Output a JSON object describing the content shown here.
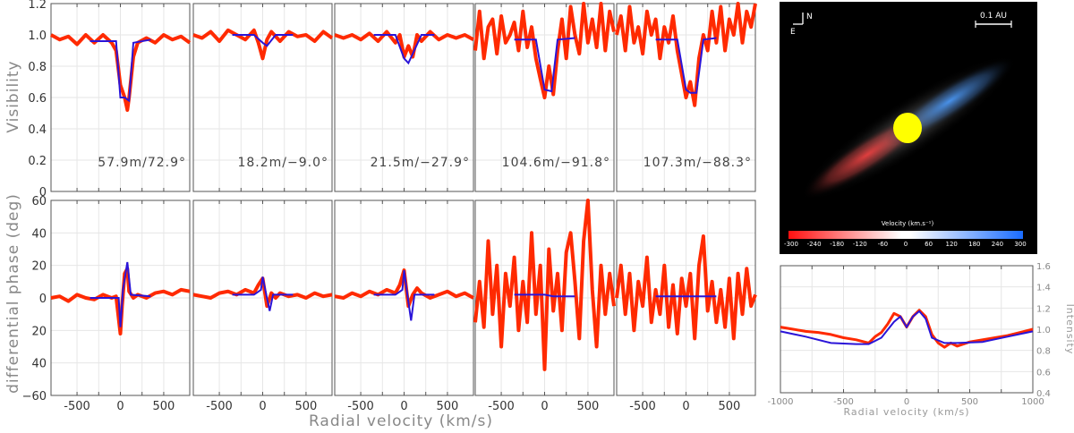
{
  "chart_data": [
    {
      "type": "line",
      "panel": "visibility",
      "ylabel": "Visibility",
      "ylim": [
        0,
        1.2
      ],
      "yticks": [
        "0",
        "0.2",
        "0.4",
        "0.6",
        "0.8",
        "1.0",
        "1.2"
      ],
      "xlim": [
        -800,
        800
      ],
      "xticks": [
        "-500",
        "0",
        "500"
      ],
      "xlabel": "Radial velocity (km/s)",
      "grid": true,
      "colors": {
        "observed": "#ff2a00",
        "model": "#2a14d8"
      },
      "subplots": [
        {
          "label": "57.9m/72.9°",
          "model": {
            "x": [
              -350,
              -50,
              0,
              50,
              100,
              150,
              350
            ],
            "y": [
              0.96,
              0.96,
              0.6,
              0.6,
              0.58,
              0.95,
              0.97
            ]
          },
          "observed": {
            "x": [
              -800,
              -700,
              -600,
              -500,
              -400,
              -300,
              -200,
              -100,
              -50,
              0,
              50,
              80,
              100,
              150,
              200,
              300,
              400,
              500,
              600,
              700,
              800
            ],
            "y": [
              1.0,
              0.97,
              0.99,
              0.94,
              1.0,
              0.95,
              1.0,
              0.95,
              0.9,
              0.68,
              0.6,
              0.52,
              0.6,
              0.86,
              0.95,
              0.98,
              0.95,
              1.0,
              0.97,
              0.99,
              0.95
            ]
          }
        },
        {
          "label": "18.2m/−9.0°",
          "model": {
            "x": [
              -350,
              -100,
              0,
              50,
              150,
              350
            ],
            "y": [
              1.0,
              1.0,
              0.95,
              0.93,
              1.0,
              1.0
            ]
          },
          "observed": {
            "x": [
              -800,
              -700,
              -600,
              -500,
              -400,
              -300,
              -200,
              -100,
              -50,
              0,
              50,
              100,
              200,
              300,
              400,
              500,
              600,
              700,
              800
            ],
            "y": [
              1.0,
              0.98,
              1.02,
              0.96,
              1.03,
              1.0,
              0.97,
              1.03,
              0.95,
              0.85,
              0.97,
              1.02,
              0.96,
              1.02,
              0.99,
              1.0,
              0.96,
              1.02,
              0.98
            ]
          }
        },
        {
          "label": "21.5m/−27.9°",
          "model": {
            "x": [
              -350,
              -100,
              0,
              50,
              100,
              200,
              350
            ],
            "y": [
              1.0,
              1.0,
              0.85,
              0.82,
              0.88,
              1.0,
              1.0
            ]
          },
          "observed": {
            "x": [
              -800,
              -700,
              -600,
              -500,
              -400,
              -300,
              -200,
              -100,
              -50,
              0,
              50,
              100,
              150,
              200,
              300,
              400,
              500,
              600,
              700,
              800
            ],
            "y": [
              1.0,
              0.98,
              1.0,
              0.97,
              1.01,
              0.96,
              1.02,
              0.95,
              1.0,
              0.86,
              0.93,
              0.86,
              1.0,
              0.96,
              1.02,
              0.97,
              1.0,
              0.98,
              1.0,
              0.97
            ]
          }
        },
        {
          "label": "104.6m/−91.8°",
          "model": {
            "x": [
              -350,
              -100,
              0,
              80,
              150,
              350
            ],
            "y": [
              0.97,
              0.97,
              0.65,
              0.64,
              0.97,
              0.98
            ]
          },
          "observed": {
            "x": [
              -800,
              -750,
              -700,
              -650,
              -600,
              -550,
              -500,
              -450,
              -400,
              -350,
              -300,
              -250,
              -200,
              -150,
              -100,
              -50,
              0,
              50,
              100,
              150,
              200,
              250,
              300,
              350,
              400,
              450,
              500,
              550,
              600,
              650,
              700,
              750,
              800
            ],
            "y": [
              0.9,
              1.15,
              0.85,
              1.05,
              1.1,
              0.88,
              1.12,
              0.95,
              1.0,
              1.08,
              0.9,
              1.15,
              0.92,
              1.05,
              0.85,
              0.72,
              0.6,
              0.8,
              0.62,
              0.9,
              1.1,
              0.85,
              1.18,
              1.0,
              0.88,
              1.2,
              0.95,
              1.1,
              0.92,
              1.2,
              0.9,
              1.15,
              1.02
            ]
          }
        },
        {
          "label": "107.3m/−88.3°",
          "model": {
            "x": [
              -350,
              -100,
              0,
              50,
              120,
              200,
              350
            ],
            "y": [
              0.97,
              0.97,
              0.65,
              0.63,
              0.63,
              0.97,
              0.98
            ]
          },
          "observed": {
            "x": [
              -800,
              -750,
              -700,
              -650,
              -600,
              -550,
              -500,
              -450,
              -400,
              -350,
              -300,
              -250,
              -200,
              -150,
              -100,
              -50,
              0,
              50,
              100,
              150,
              200,
              250,
              300,
              350,
              400,
              450,
              500,
              550,
              600,
              650,
              700,
              750,
              800
            ],
            "y": [
              1.0,
              1.12,
              0.9,
              1.18,
              0.95,
              1.05,
              0.88,
              1.15,
              1.0,
              1.1,
              0.85,
              1.05,
              0.95,
              1.12,
              0.9,
              0.75,
              0.6,
              0.7,
              0.55,
              0.85,
              1.0,
              0.9,
              1.15,
              0.95,
              1.18,
              0.9,
              1.1,
              1.0,
              1.2,
              0.95,
              1.15,
              1.05,
              1.2
            ]
          }
        }
      ]
    },
    {
      "type": "line",
      "panel": "differential-phase",
      "ylabel": "differential phase (deg)",
      "ylim": [
        -60,
        60
      ],
      "yticks": [
        "−60",
        "40",
        "20",
        "0",
        "20",
        "40",
        "60"
      ],
      "xlim": [
        -800,
        800
      ],
      "xticks": [
        "-500",
        "0",
        "500"
      ],
      "xlabel": "Radial velocity (km/s)",
      "grid": true,
      "subplots": [
        {
          "model": {
            "x": [
              -350,
              -100,
              -20,
              0,
              30,
              80,
              120,
              350
            ],
            "y": [
              0,
              0,
              0,
              -18,
              5,
              22,
              2,
              1
            ]
          },
          "observed": {
            "x": [
              -800,
              -700,
              -600,
              -500,
              -400,
              -300,
              -200,
              -100,
              -50,
              0,
              20,
              50,
              80,
              100,
              150,
              200,
              300,
              400,
              500,
              600,
              700,
              800
            ],
            "y": [
              0,
              1,
              -2,
              2,
              0,
              -1,
              2,
              0,
              1,
              -22,
              -5,
              15,
              18,
              4,
              0,
              2,
              0,
              3,
              4,
              2,
              5,
              4
            ]
          }
        },
        {
          "model": {
            "x": [
              -350,
              -100,
              -20,
              0,
              30,
              80,
              120,
              350
            ],
            "y": [
              2,
              2,
              5,
              13,
              5,
              -8,
              2,
              2
            ]
          },
          "observed": {
            "x": [
              -800,
              -700,
              -600,
              -500,
              -400,
              -300,
              -200,
              -100,
              -50,
              0,
              50,
              100,
              150,
              200,
              300,
              400,
              500,
              600,
              700,
              800
            ],
            "y": [
              2,
              1,
              0,
              3,
              4,
              2,
              5,
              3,
              8,
              12,
              -5,
              3,
              0,
              3,
              1,
              2,
              0,
              3,
              1,
              2
            ]
          }
        },
        {
          "model": {
            "x": [
              -350,
              -100,
              -20,
              0,
              30,
              80,
              120,
              350
            ],
            "y": [
              2,
              2,
              5,
              17,
              5,
              -14,
              2,
              2
            ]
          },
          "observed": {
            "x": [
              -800,
              -700,
              -600,
              -500,
              -400,
              -300,
              -200,
              -100,
              -50,
              0,
              50,
              100,
              150,
              200,
              300,
              400,
              500,
              600,
              700,
              800
            ],
            "y": [
              1,
              0,
              3,
              1,
              4,
              2,
              5,
              3,
              8,
              17,
              -5,
              2,
              6,
              3,
              0,
              2,
              4,
              1,
              3,
              0
            ]
          }
        },
        {
          "model": {
            "x": [
              -350,
              0,
              100,
              350
            ],
            "y": [
              2,
              2,
              1,
              1
            ]
          },
          "observed": {
            "x": [
              -800,
              -750,
              -700,
              -650,
              -600,
              -550,
              -500,
              -450,
              -400,
              -350,
              -300,
              -250,
              -200,
              -150,
              -100,
              -50,
              0,
              50,
              100,
              150,
              200,
              250,
              300,
              350,
              400,
              450,
              500,
              550,
              600,
              650,
              700,
              750,
              800
            ],
            "y": [
              -15,
              10,
              -18,
              35,
              -10,
              20,
              -30,
              15,
              -5,
              25,
              -20,
              10,
              -15,
              40,
              -10,
              20,
              -44,
              30,
              -8,
              15,
              -20,
              28,
              40,
              10,
              -25,
              35,
              60,
              5,
              -30,
              20,
              -10,
              15,
              -5
            ]
          }
        },
        {
          "model": {
            "x": [
              -350,
              0,
              100,
              350
            ],
            "y": [
              1,
              1,
              1,
              1
            ]
          },
          "observed": {
            "x": [
              -800,
              -750,
              -700,
              -650,
              -600,
              -550,
              -500,
              -450,
              -400,
              -350,
              -300,
              -250,
              -200,
              -150,
              -100,
              -50,
              0,
              50,
              100,
              150,
              200,
              250,
              300,
              350,
              400,
              450,
              500,
              550,
              600,
              650,
              700,
              750,
              800
            ],
            "y": [
              0,
              20,
              -10,
              15,
              -20,
              10,
              -5,
              25,
              -15,
              5,
              -10,
              20,
              -18,
              8,
              -22,
              12,
              -5,
              15,
              -25,
              20,
              38,
              -8,
              10,
              -15,
              5,
              -18,
              12,
              -25,
              15,
              -10,
              18,
              -5,
              2
            ]
          }
        }
      ]
    },
    {
      "type": "line",
      "panel": "intensity",
      "ylabel": "Intensity",
      "ylim": [
        0.4,
        1.6
      ],
      "yticks": [
        "0.4",
        "0.6",
        "0.8",
        "1.0",
        "1.2",
        "1.4",
        "1.6"
      ],
      "xlim": [
        -1000,
        1000
      ],
      "xticks": [
        "-1000",
        "-500",
        "0",
        "500",
        "1000"
      ],
      "xlabel": "Radial velocity (km/s)",
      "grid": true,
      "model": {
        "x": [
          -1000,
          -800,
          -600,
          -400,
          -300,
          -200,
          -100,
          -50,
          0,
          50,
          100,
          150,
          200,
          300,
          400,
          600,
          800,
          1000
        ],
        "y": [
          0.98,
          0.93,
          0.87,
          0.86,
          0.86,
          0.92,
          1.07,
          1.12,
          1.02,
          1.12,
          1.17,
          1.1,
          0.92,
          0.87,
          0.87,
          0.88,
          0.93,
          0.98
        ]
      },
      "observed": {
        "x": [
          -1000,
          -900,
          -800,
          -700,
          -600,
          -500,
          -400,
          -300,
          -250,
          -200,
          -150,
          -100,
          -50,
          0,
          50,
          100,
          150,
          200,
          250,
          300,
          350,
          400,
          450,
          500,
          600,
          700,
          800,
          900,
          1000
        ],
        "y": [
          1.02,
          1.0,
          0.98,
          0.97,
          0.95,
          0.92,
          0.9,
          0.87,
          0.93,
          0.97,
          1.05,
          1.15,
          1.12,
          1.02,
          1.12,
          1.18,
          1.12,
          0.95,
          0.87,
          0.83,
          0.87,
          0.84,
          0.86,
          0.88,
          0.9,
          0.92,
          0.94,
          0.97,
          1.0
        ]
      }
    }
  ],
  "image_panel": {
    "north_label": "N",
    "east_label": "E",
    "scale_label": "0.1 AU",
    "colorbar_title": "Velocity (km.s⁻¹)",
    "colorbar_ticks": [
      "-300",
      "-240",
      "-180",
      "-120",
      "-60",
      "0",
      "60",
      "120",
      "180",
      "240",
      "300"
    ],
    "disk_colors": {
      "red": "#ff3030",
      "blue": "#3a8cff",
      "star": "#ffff00"
    }
  }
}
